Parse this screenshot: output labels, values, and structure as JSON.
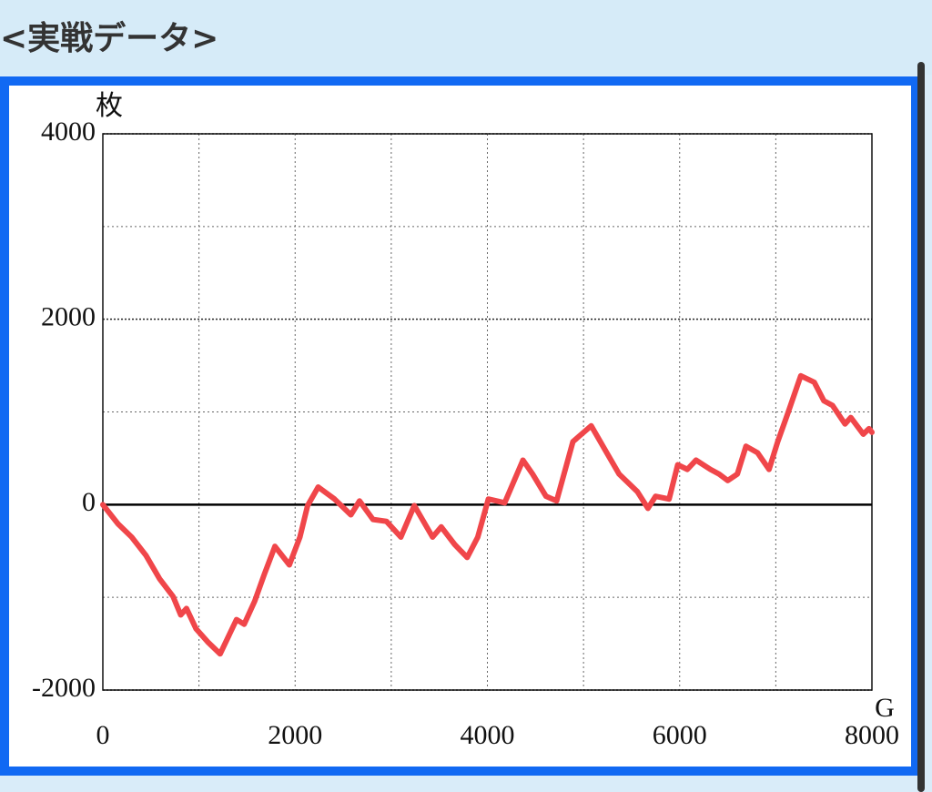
{
  "header": {
    "title": "<実戦データ>"
  },
  "chart_data": {
    "type": "line",
    "y_unit_label": "枚",
    "x_unit_label": "G",
    "color": "#f0464a",
    "x": [
      0,
      160,
      300,
      450,
      590,
      730,
      810,
      870,
      970,
      1090,
      1220,
      1390,
      1470,
      1580,
      1680,
      1790,
      1940,
      2050,
      2130,
      2240,
      2410,
      2580,
      2670,
      2810,
      2950,
      3100,
      3240,
      3430,
      3520,
      3660,
      3790,
      3900,
      4010,
      4180,
      4370,
      4470,
      4610,
      4720,
      4890,
      5080,
      5230,
      5370,
      5560,
      5670,
      5750,
      5890,
      5980,
      6080,
      6170,
      6320,
      6410,
      6500,
      6600,
      6690,
      6810,
      6930,
      7020,
      7120,
      7260,
      7400,
      7500,
      7590,
      7720,
      7780,
      7910,
      7970,
      8000
    ],
    "values": [
      0,
      -210,
      -350,
      -550,
      -800,
      -990,
      -1190,
      -1120,
      -1340,
      -1480,
      -1610,
      -1240,
      -1290,
      -1040,
      -750,
      -450,
      -650,
      -350,
      -10,
      190,
      60,
      -110,
      40,
      -160,
      -180,
      -350,
      -10,
      -350,
      -240,
      -430,
      -570,
      -350,
      60,
      20,
      480,
      330,
      90,
      40,
      680,
      850,
      580,
      330,
      140,
      -40,
      90,
      60,
      430,
      380,
      480,
      380,
      330,
      260,
      330,
      630,
      560,
      380,
      680,
      970,
      1390,
      1320,
      1120,
      1070,
      870,
      940,
      760,
      820,
      780
    ],
    "xlim": [
      0,
      8000
    ],
    "ylim": [
      -2000,
      4000
    ],
    "xticks": [
      0,
      2000,
      4000,
      6000,
      8000
    ],
    "yticks": [
      -2000,
      0,
      2000,
      4000
    ],
    "x_minor_grid": [
      1000,
      3000,
      5000,
      7000
    ],
    "y_minor_grid": [
      -1000,
      1000,
      3000
    ],
    "zero_line": true,
    "grid": true
  }
}
